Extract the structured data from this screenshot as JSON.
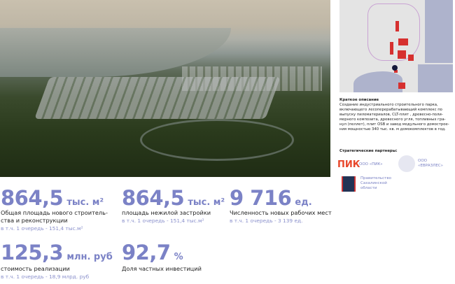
{
  "description": {
    "title": "Краткое описание",
    "lines": [
      "Создание индустриального строительного парка,",
      "включающего лесоперерабатывающий комплекс по",
      "выпуску пиломатериалов, CLT-плит , древесно-поли-",
      "мерного композита, древесного угля, топливных гра-",
      "нул (пеллет), плит OSB и завод модульного домострое-",
      "ния мощностью 340 тыс. кв. м домокомплектов в год."
    ]
  },
  "partners": {
    "title": "Стратегические партнеры:",
    "pik_logo": "ПИК",
    "pik": "ООО «ПИК»",
    "evraz": [
      "ООО",
      "«ЕВРАЗЛЕС»"
    ],
    "gov": [
      "Правительство",
      "Сахалинской",
      "области"
    ]
  },
  "stats": [
    {
      "value": "864,5",
      "unit": "тыс. м²",
      "label": [
        "Общая площадь нового строитель-",
        "ства и реконструкции"
      ],
      "sub": "в т.ч. 1 очередь - 151,4 тыс.м²"
    },
    {
      "value": "864,5",
      "unit": "тыс. м²",
      "label": [
        "площадь нежилой застройки"
      ],
      "sub": "в т.ч. 1 очередь - 151,4 тыс.м²"
    },
    {
      "value": "9 716",
      "unit": "ед.",
      "label": [
        "Численность новых рабочих мест"
      ],
      "sub": "в т.ч. 1 очередь -  3 139 ед."
    },
    {
      "value": "125,3",
      "unit": "млн. руб",
      "label": [
        "стоимость реализации"
      ],
      "sub": "в т.ч. 1 очередь - 18,9 млрд. руб"
    },
    {
      "value": "92,7",
      "unit": "%",
      "label": [
        "Доля частных инвестиций"
      ],
      "sub": ""
    }
  ],
  "colors": {
    "accent": "#7b82c6",
    "pik": "#e8462a",
    "map_red": "#d6302f"
  }
}
